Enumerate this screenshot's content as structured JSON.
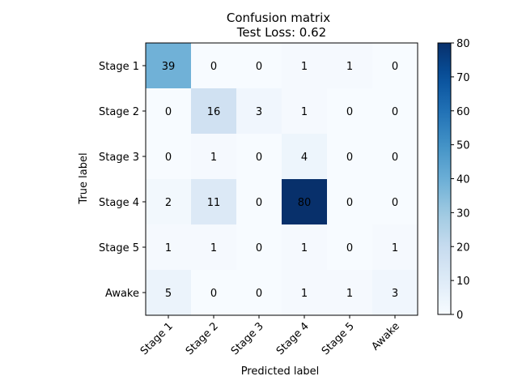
{
  "chart_data": {
    "type": "heatmap",
    "title": "Confusion matrix",
    "subtitle": "Test Loss: 0.62",
    "xlabel": "Predicted label",
    "ylabel": "True label",
    "x_categories": [
      "Stage 1",
      "Stage 2",
      "Stage 3",
      "Stage 4",
      "Stage 5",
      "Awake"
    ],
    "y_categories": [
      "Stage 1",
      "Stage 2",
      "Stage 3",
      "Stage 4",
      "Stage 5",
      "Awake"
    ],
    "values": [
      [
        39,
        0,
        0,
        1,
        1,
        0
      ],
      [
        0,
        16,
        3,
        1,
        0,
        0
      ],
      [
        0,
        1,
        0,
        4,
        0,
        0
      ],
      [
        2,
        11,
        0,
        80,
        0,
        0
      ],
      [
        1,
        1,
        0,
        1,
        0,
        1
      ],
      [
        5,
        0,
        0,
        1,
        1,
        3
      ]
    ],
    "colormap": "Blues",
    "color_range": [
      0,
      80
    ],
    "colorbar_ticks": [
      0,
      10,
      20,
      30,
      40,
      50,
      60,
      70,
      80
    ],
    "colors": {
      "low": "#f7fbff",
      "high": "#08306b",
      "text_dark": "#000000",
      "text_light": "#ffffff"
    }
  }
}
